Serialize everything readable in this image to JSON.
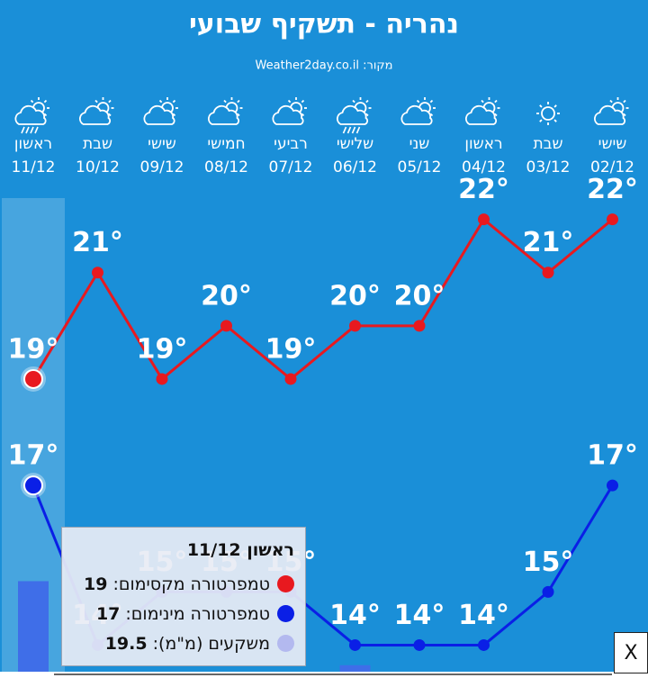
{
  "chart_data": {
    "type": "line",
    "title": "נהריה - תשקיף שבועי",
    "source": "מקור: Weather2day.co.il",
    "categories": [
      "11/12",
      "10/12",
      "09/12",
      "08/12",
      "07/12",
      "06/12",
      "05/12",
      "04/12",
      "03/12",
      "02/12"
    ],
    "day_names": [
      "ראשון",
      "שבת",
      "שישי",
      "חמישי",
      "רביעי",
      "שלישי",
      "שני",
      "ראשון",
      "שבת",
      "שישי"
    ],
    "ylim": [
      13.5,
      22.4
    ],
    "y2lim": [
      0,
      102
    ],
    "series": [
      {
        "name": "טמפרטורה מקסימום",
        "color": "#e8191f",
        "values": [
          19,
          21,
          19,
          20,
          19,
          20,
          20,
          22,
          21,
          22
        ],
        "value_labels": [
          "19°",
          "21°",
          "19°",
          "20°",
          "19°",
          "20°",
          "20°",
          "22°",
          "21°",
          "22°"
        ]
      },
      {
        "name": "טמפרטורה מינימום",
        "color": "#0a1fe6",
        "values": [
          17,
          14,
          15,
          15,
          15,
          14,
          14,
          14,
          15,
          17
        ],
        "value_labels": [
          "17°",
          "14°",
          "15°",
          "15°",
          "15°",
          "14°",
          "14°",
          "14°",
          "15°",
          "17°"
        ]
      },
      {
        "name": "משקעים (מ\"מ)",
        "color": "#3f6ee8",
        "axis": "y2",
        "type": "bar",
        "values": [
          19.5,
          0,
          0,
          0,
          0,
          1.4,
          0,
          0,
          0,
          0
        ]
      }
    ],
    "tooltip": {
      "rows": [
        {
          "label": "טמפרטורה מקסימום:",
          "color": "#e8191f"
        },
        {
          "label": "טמפרטורה מינימום:",
          "color": "#0a1fe6"
        },
        {
          "label": "משקעים (מ\"מ):",
          "color": "#b3b9ef"
        }
      ]
    },
    "close_label": "X"
  }
}
